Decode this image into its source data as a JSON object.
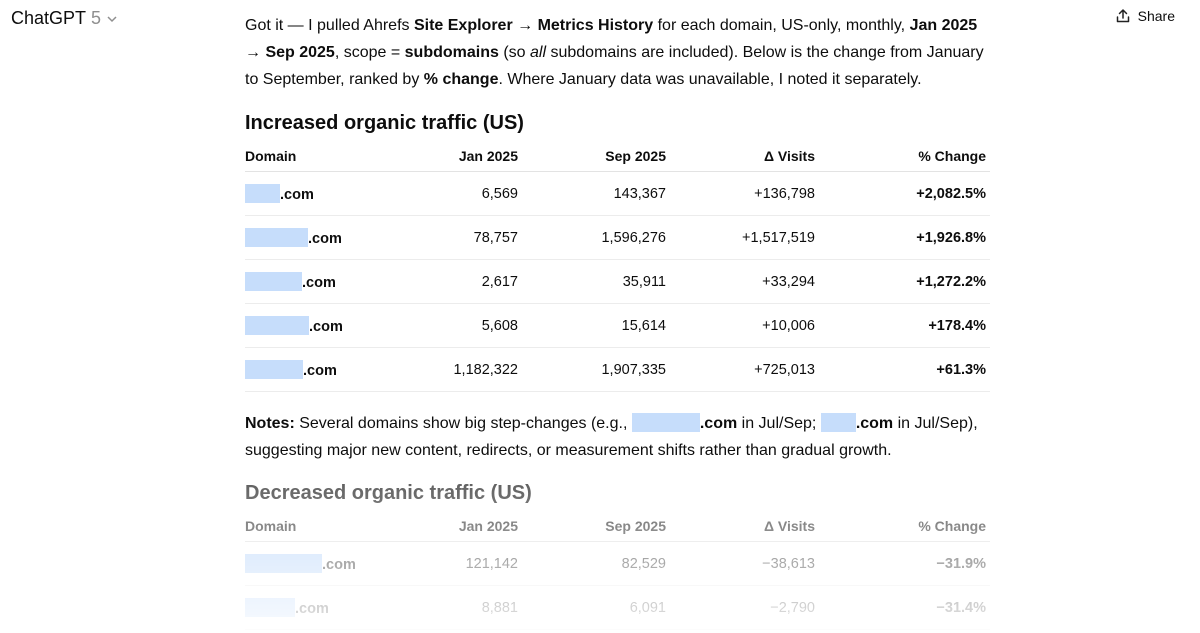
{
  "header": {
    "model": "ChatGPT",
    "version": "5",
    "share": "Share"
  },
  "intro": [
    "Got it — I pulled Ahrefs ",
    "Site Explorer → Metrics History",
    " for each domain, US-only, monthly, ",
    "Jan 2025 → Sep 2025",
    ", scope = ",
    "subdomains",
    " (so ",
    "all",
    " subdomains are included). Below is the change from January to September, ranked by ",
    "% change",
    ". Where January data was unavailable, I noted it separately."
  ],
  "tables": [
    {
      "title": "Increased organic traffic (US)",
      "columns": [
        "Domain",
        "Jan 2025",
        "Sep 2025",
        "Δ Visits",
        "% Change"
      ],
      "rows": [
        [
          ".com",
          "6,569",
          "143,367",
          "+136,798",
          "+2,082.5%"
        ],
        [
          ".com",
          "78,757",
          "1,596,276",
          "+1,517,519",
          "+1,926.8%"
        ],
        [
          ".com",
          "2,617",
          "35,911",
          "+33,294",
          "+1,272.2%"
        ],
        [
          ".com",
          "5,608",
          "15,614",
          "+10,006",
          "+178.4%"
        ],
        [
          ".com",
          "1,182,322",
          "1,907,335",
          "+725,013",
          "+61.3%"
        ]
      ]
    },
    {
      "title": "Decreased organic traffic (US)",
      "columns": [
        "Domain",
        "Jan 2025",
        "Sep 2025",
        "Δ Visits",
        "% Change"
      ],
      "rows": [
        [
          ".com",
          "121,142",
          "82,529",
          "−38,613",
          "−31.9%"
        ],
        [
          ".com",
          "8,881",
          "6,091",
          "−2,790",
          "−31.4%"
        ]
      ]
    }
  ],
  "notes": [
    "Notes:",
    " Several domains show big step-changes (e.g., ",
    ".com",
    " in Jul/Sep; ",
    ".com",
    " in Jul/Sep), suggesting major new content, redirects, or measurement shifts rather than gradual growth."
  ]
}
